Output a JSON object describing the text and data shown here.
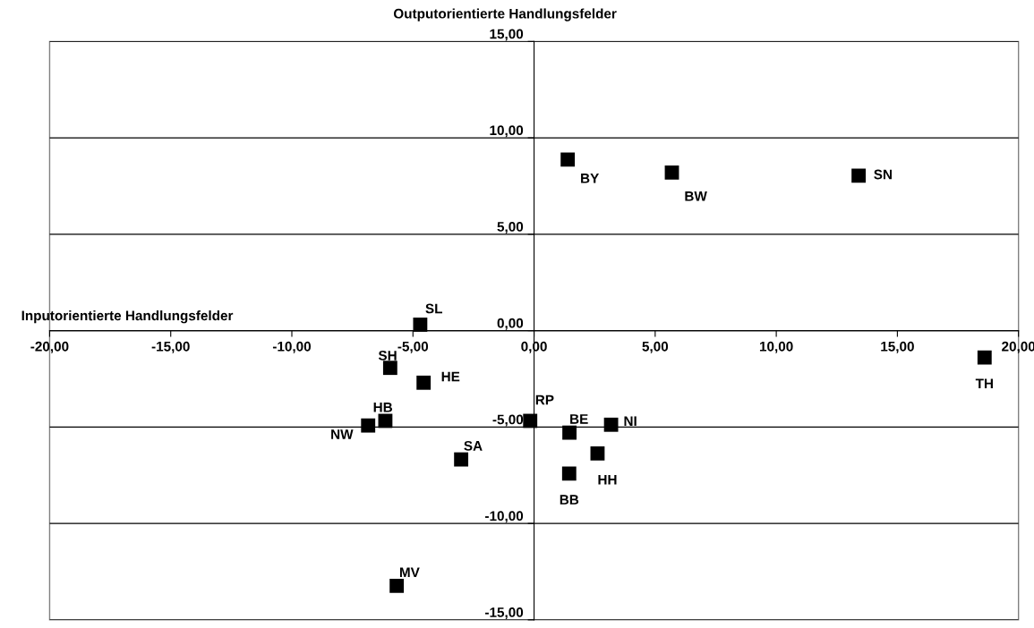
{
  "chart_data": {
    "type": "scatter",
    "xlabel": "Inputorientierte Handlungsfelder",
    "ylabel": "Outputorientierte Handlungsfelder",
    "series": [
      {
        "color": "#000000",
        "x": [
          -4.7,
          -5.94,
          -4.56,
          -6.14,
          -6.85,
          -3.01,
          -5.67,
          -0.16,
          1.46,
          1.45,
          2.62,
          3.18,
          1.39,
          5.69,
          13.4,
          18.6
        ],
        "values": [
          0.31,
          -1.93,
          -2.7,
          -4.68,
          -4.92,
          -6.68,
          -13.24,
          -4.68,
          -5.29,
          -7.41,
          -6.37,
          -4.88,
          8.87,
          8.2,
          8.04,
          -1.39
        ]
      }
    ],
    "annotations": [
      {
        "text": "SL",
        "x": -4.7,
        "y": 0.31
      },
      {
        "text": "SH",
        "x": -5.94,
        "y": -1.93
      },
      {
        "text": "HE",
        "x": -4.56,
        "y": -2.7
      },
      {
        "text": "HB",
        "x": -6.14,
        "y": -4.68
      },
      {
        "text": "NW",
        "x": -6.85,
        "y": -4.92
      },
      {
        "text": "SA",
        "x": -3.01,
        "y": -6.68
      },
      {
        "text": "MV",
        "x": -5.67,
        "y": -13.24
      },
      {
        "text": "RP",
        "x": -0.16,
        "y": -4.68
      },
      {
        "text": "BE",
        "x": 1.46,
        "y": -5.29
      },
      {
        "text": "BB",
        "x": 1.45,
        "y": -7.41
      },
      {
        "text": "HH",
        "x": 2.62,
        "y": -6.37
      },
      {
        "text": "NI",
        "x": 3.18,
        "y": -4.88
      },
      {
        "text": "BY",
        "x": 1.39,
        "y": 8.87
      },
      {
        "text": "BW",
        "x": 5.69,
        "y": 8.2
      },
      {
        "text": "SN",
        "x": 13.4,
        "y": 8.04
      },
      {
        "text": "TH",
        "x": 18.6,
        "y": -1.39
      }
    ],
    "xlim": [
      -20,
      20
    ],
    "xticks": [
      {
        "value": -20,
        "label": "-20,00"
      },
      {
        "value": -15,
        "label": "-15,00"
      },
      {
        "value": -10,
        "label": "-10,00"
      },
      {
        "value": -5,
        "label": "-5,00"
      },
      {
        "value": 0,
        "label": "0,00"
      },
      {
        "value": 5,
        "label": "5,00"
      },
      {
        "value": 10,
        "label": "10,00"
      },
      {
        "value": 15,
        "label": "15,00"
      },
      {
        "value": 20,
        "label": "20,00"
      }
    ],
    "ylim": [
      -15,
      15
    ],
    "yticks": [
      {
        "value": -15,
        "label": "-15,00"
      },
      {
        "value": -10,
        "label": "-10,00"
      },
      {
        "value": -5,
        "label": "-5,00"
      },
      {
        "value": 0,
        "label": "0,00"
      },
      {
        "value": 5,
        "label": "5,00"
      },
      {
        "value": 10,
        "label": "10,00"
      },
      {
        "value": 15,
        "label": "15,00"
      }
    ],
    "grid": "y",
    "marker": "square",
    "legend": false
  }
}
